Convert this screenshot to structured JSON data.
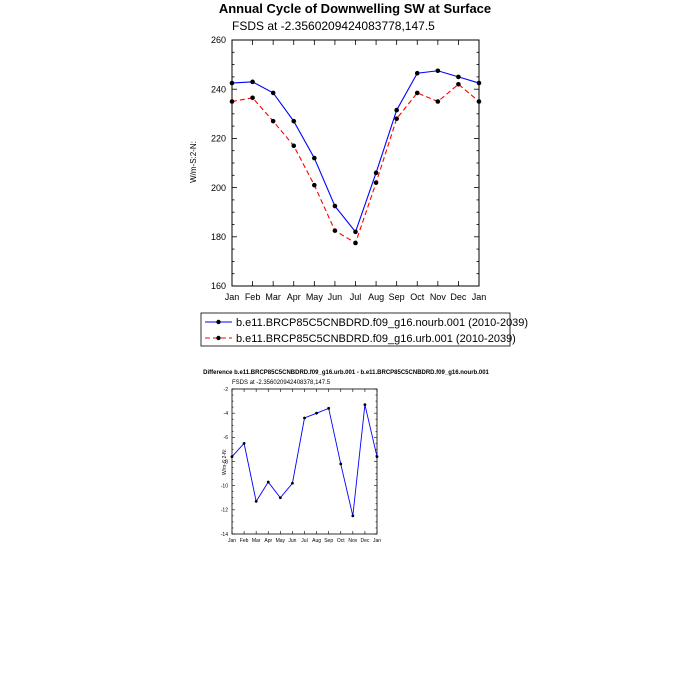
{
  "chart_data": [
    {
      "type": "line",
      "title": "Annual Cycle of Downwelling SW at Surface",
      "subtitle": "FSDS at -2.3560209424083778,147.5",
      "ylabel": "W/m-S:2-N:",
      "categories": [
        "Jan",
        "Feb",
        "Mar",
        "Apr",
        "May",
        "Jun",
        "Jul",
        "Aug",
        "Sep",
        "Oct",
        "Nov",
        "Dec",
        "Jan"
      ],
      "yticks": [
        "160",
        "180",
        "200",
        "220",
        "240",
        "260"
      ],
      "ylim": [
        160,
        260
      ],
      "series": [
        {
          "name": "b.e11.BRCP85C5CNBDRD.f09_g16.nourb.001 (2010-2039)",
          "color": "#0000ff",
          "dash": "solid",
          "values": [
            242.5,
            243.0,
            238.5,
            227.0,
            212.0,
            192.5,
            182.0,
            206.0,
            231.5,
            246.5,
            247.5,
            245.0,
            242.5
          ]
        },
        {
          "name": "b.e11.BRCP85C5CNBDRD.f09_g16.urb.001 (2010-2039)",
          "color": "#ff0000",
          "dash": "dashed",
          "values": [
            235.0,
            236.5,
            227.0,
            217.0,
            201.0,
            182.5,
            177.5,
            202.0,
            228.0,
            238.5,
            235.0,
            242.0,
            235.0
          ]
        }
      ],
      "legend": "bottom"
    },
    {
      "type": "line",
      "title": "Difference b.e11.BRCP85C5CNBDRD.f09_g16.urb.001 - b.e11.BRCP85C5CNBDRD.f09_g16.nourb.001",
      "subtitle": "FSDS at -2.356020942408378,147.5",
      "ylabel": "W/m-S:2-N:",
      "categories": [
        "Jan",
        "Feb",
        "Mar",
        "Apr",
        "May",
        "Jun",
        "Jul",
        "Aug",
        "Sep",
        "Oct",
        "Nov",
        "Dec",
        "Jan"
      ],
      "yticks": [
        "-2",
        "-4",
        "-6",
        "-8",
        "-10",
        "-12",
        "-14"
      ],
      "ylim": [
        -14,
        -2
      ],
      "series": [
        {
          "color": "#0000ff",
          "values": [
            -7.6,
            -6.5,
            -11.3,
            -9.7,
            -11.0,
            -9.8,
            -4.4,
            -4.0,
            -3.6,
            -8.2,
            -12.5,
            -3.3,
            -7.6
          ]
        }
      ]
    }
  ]
}
